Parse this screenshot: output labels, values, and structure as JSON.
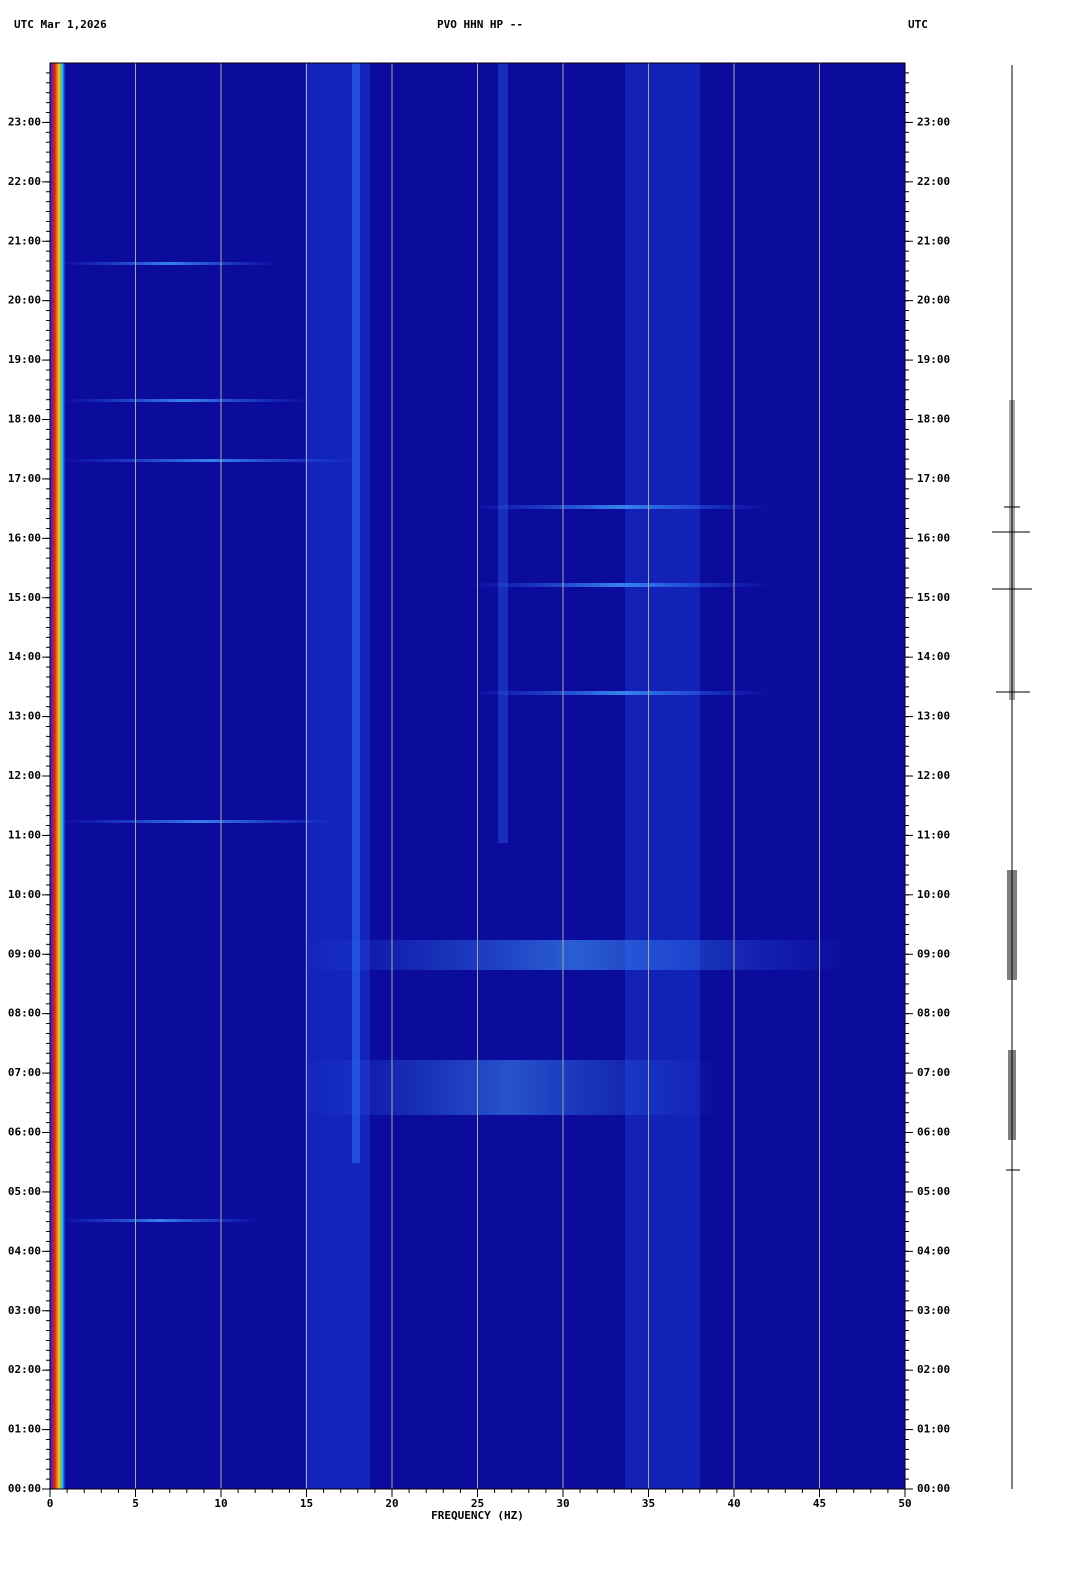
{
  "chart_data": {
    "type": "spectrogram",
    "title": "PVO HHN HP --",
    "subtitle": "UTC  Mar 1,2026",
    "right_label": "UTC",
    "xlabel": "FREQUENCY (HZ)",
    "xlim": [
      0,
      50
    ],
    "xticks": [
      0,
      5,
      10,
      15,
      20,
      25,
      30,
      35,
      40,
      45,
      50
    ],
    "ylim": [
      0,
      24
    ],
    "yticks": [
      {
        "value": 0,
        "label": "00:00"
      },
      {
        "value": 1,
        "label": "01:00"
      },
      {
        "value": 2,
        "label": "02:00"
      },
      {
        "value": 3,
        "label": "03:00"
      },
      {
        "value": 4,
        "label": "04:00"
      },
      {
        "value": 5,
        "label": "05:00"
      },
      {
        "value": 6,
        "label": "06:00"
      },
      {
        "value": 7,
        "label": "07:00"
      },
      {
        "value": 8,
        "label": "08:00"
      },
      {
        "value": 9,
        "label": "09:00"
      },
      {
        "value": 10,
        "label": "10:00"
      },
      {
        "value": 11,
        "label": "11:00"
      },
      {
        "value": 12,
        "label": "12:00"
      },
      {
        "value": 13,
        "label": "13:00"
      },
      {
        "value": 14,
        "label": "14:00"
      },
      {
        "value": 15,
        "label": "15:00"
      },
      {
        "value": 16,
        "label": "16:00"
      },
      {
        "value": 17,
        "label": "17:00"
      },
      {
        "value": 18,
        "label": "18:00"
      },
      {
        "value": 19,
        "label": "19:00"
      },
      {
        "value": 20,
        "label": "20:00"
      },
      {
        "value": 21,
        "label": "21:00"
      },
      {
        "value": 22,
        "label": "22:00"
      },
      {
        "value": 23,
        "label": "23:00"
      }
    ],
    "background": "#0c0c9c",
    "grid": true
  }
}
